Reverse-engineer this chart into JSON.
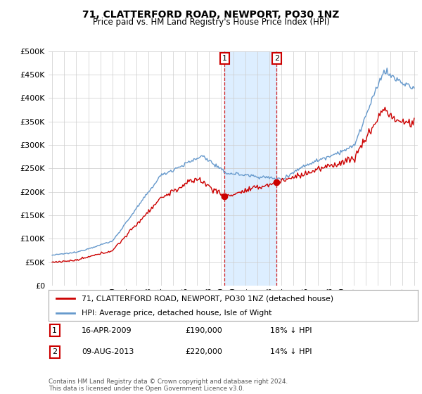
{
  "title": "71, CLATTERFORD ROAD, NEWPORT, PO30 1NZ",
  "subtitle": "Price paid vs. HM Land Registry's House Price Index (HPI)",
  "legend_line1": "71, CLATTERFORD ROAD, NEWPORT, PO30 1NZ (detached house)",
  "legend_line2": "HPI: Average price, detached house, Isle of Wight",
  "annotation1": {
    "num": "1",
    "date": "16-APR-2009",
    "price": "£190,000",
    "pct": "18% ↓ HPI",
    "x_year": 2009.29
  },
  "annotation2": {
    "num": "2",
    "date": "09-AUG-2013",
    "price": "£220,000",
    "pct": "14% ↓ HPI",
    "x_year": 2013.6
  },
  "footer": "Contains HM Land Registry data © Crown copyright and database right 2024.\nThis data is licensed under the Open Government Licence v3.0.",
  "ylim": [
    0,
    500000
  ],
  "yticks": [
    0,
    50000,
    100000,
    150000,
    200000,
    250000,
    300000,
    350000,
    400000,
    450000,
    500000
  ],
  "xlim_start": 1994.7,
  "xlim_end": 2025.3,
  "house_color": "#cc0000",
  "hpi_color": "#6699cc",
  "background_color": "#ffffff",
  "plot_bg_color": "#ffffff",
  "grid_color": "#cccccc",
  "highlight_color": "#ddeeff",
  "ann1_price": 190000,
  "ann2_price": 220000
}
